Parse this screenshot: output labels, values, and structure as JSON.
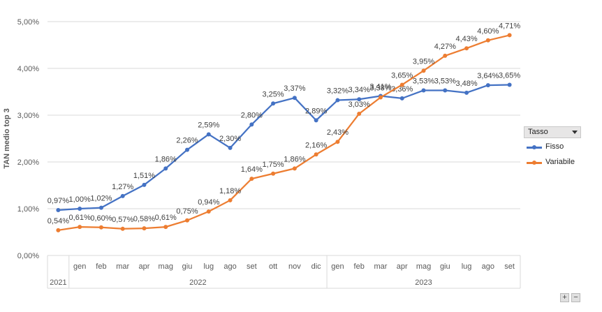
{
  "chart_data": {
    "type": "line",
    "ylabel": "TAN medio top 3",
    "ylim": [
      0,
      5
    ],
    "yticks": [
      "0,00%",
      "1,00%",
      "2,00%",
      "3,00%",
      "4,00%",
      "5,00%"
    ],
    "categories": [
      "",
      "gen",
      "feb",
      "mar",
      "apr",
      "mag",
      "giu",
      "lug",
      "ago",
      "set",
      "ott",
      "nov",
      "dic",
      "gen",
      "feb",
      "mar",
      "apr",
      "mag",
      "giu",
      "lug",
      "ago",
      "set"
    ],
    "years": [
      {
        "label": "2021",
        "from": 0,
        "to": 0
      },
      {
        "label": "2022",
        "from": 1,
        "to": 12
      },
      {
        "label": "2023",
        "from": 13,
        "to": 21
      }
    ],
    "series": [
      {
        "name": "Fisso",
        "color": "#4472c4",
        "values": [
          0.97,
          1.0,
          1.02,
          1.27,
          1.51,
          1.86,
          2.26,
          2.59,
          2.3,
          2.8,
          3.25,
          3.37,
          2.89,
          3.32,
          3.34,
          3.41,
          3.36,
          3.53,
          3.53,
          3.48,
          3.64,
          3.65
        ],
        "labels": [
          "0,97%",
          "1,00%",
          "1,02%",
          "1,27%",
          "1,51%",
          "1,86%",
          "2,26%",
          "2,59%",
          "2,30%",
          "2,80%",
          "3,25%",
          "3,37%",
          "2,89%",
          "3,32%",
          "3,34%",
          "3,41%",
          "3,36%",
          "3,53%",
          "3,53%",
          "3,48%",
          "3,64%",
          "3,65%"
        ]
      },
      {
        "name": "Variabile",
        "color": "#ed7d31",
        "values": [
          0.54,
          0.61,
          0.6,
          0.57,
          0.58,
          0.61,
          0.75,
          0.94,
          1.18,
          1.64,
          1.75,
          1.86,
          2.16,
          2.43,
          3.03,
          3.38,
          3.65,
          3.95,
          4.27,
          4.43,
          4.6,
          4.71
        ],
        "labels": [
          "0,54%",
          "0,61%",
          "0,60%",
          "0,57%",
          "0,58%",
          "0,61%",
          "0,75%",
          "0,94%",
          "1,18%",
          "1,64%",
          "1,75%",
          "1,86%",
          "2,16%",
          "2,43%",
          "3,03%",
          "3,38%",
          "3,65%",
          "3,95%",
          "4,27%",
          "4,43%",
          "4,60%",
          "4,71%"
        ]
      }
    ],
    "grid": true,
    "legend_position": "right"
  },
  "legend": {
    "title": "Tasso",
    "items": [
      "Fisso",
      "Variabile"
    ]
  },
  "controls": {
    "zoom_in": "+",
    "zoom_out": "−"
  }
}
